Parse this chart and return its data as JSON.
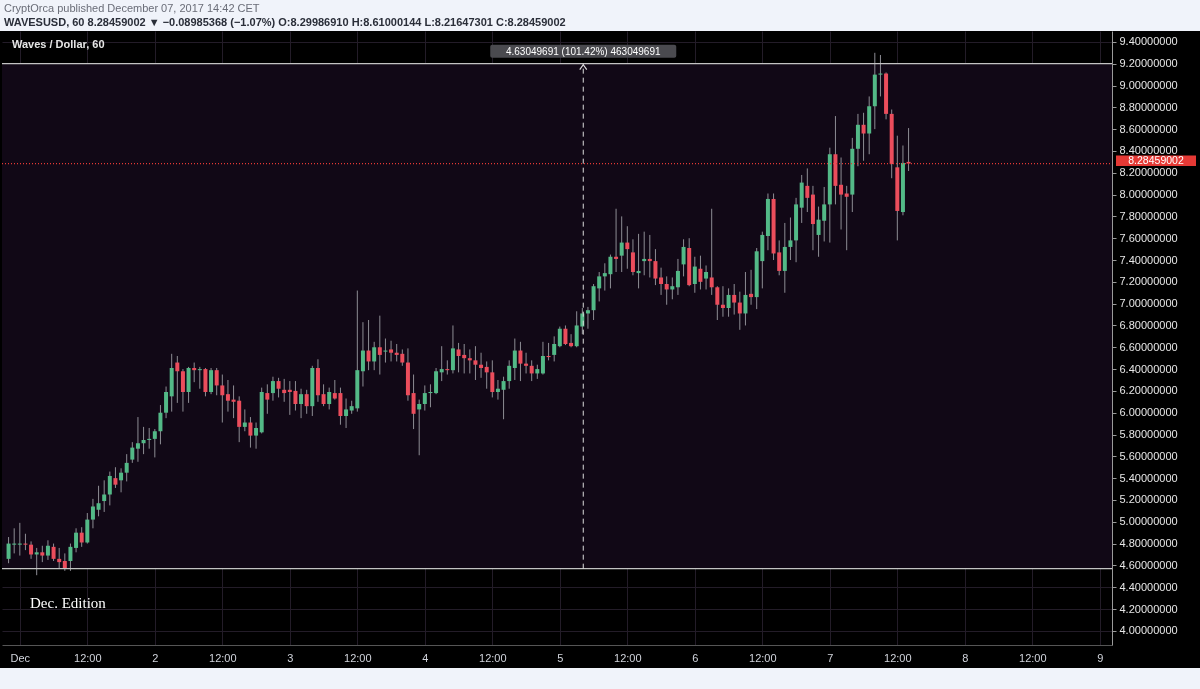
{
  "chart_data": {
    "type": "candlestick",
    "title": "Waves / Dollar, 60",
    "annotations": [
      "CryptOrca published December 07, 2017 14:42 CET",
      "WAVESUSD, 60 8.28459002 ▼ −0.08985368 (−1.07%) O:8.29986910 H:8.61000144 L:8.21647301 C:8.28459002",
      "Dec. Edition"
    ],
    "x": [
      "2017-11-30T22:00",
      "2017-11-30T23:00",
      "2017-12-01T00:00",
      "2017-12-01T01:00",
      "2017-12-01T02:00",
      "2017-12-01T03:00",
      "2017-12-01T04:00",
      "2017-12-01T05:00",
      "2017-12-01T06:00",
      "2017-12-01T07:00",
      "2017-12-01T08:00",
      "2017-12-01T09:00",
      "2017-12-01T10:00",
      "2017-12-01T11:00",
      "2017-12-01T12:00",
      "2017-12-01T13:00",
      "2017-12-01T14:00",
      "2017-12-01T15:00",
      "2017-12-01T16:00",
      "2017-12-01T17:00",
      "2017-12-01T18:00",
      "2017-12-01T19:00",
      "2017-12-01T20:00",
      "2017-12-01T21:00",
      "2017-12-01T22:00",
      "2017-12-01T23:00",
      "2017-12-02T00:00",
      "2017-12-02T01:00",
      "2017-12-02T02:00",
      "2017-12-02T03:00",
      "2017-12-02T04:00",
      "2017-12-02T05:00",
      "2017-12-02T06:00",
      "2017-12-02T07:00",
      "2017-12-02T08:00",
      "2017-12-02T09:00",
      "2017-12-02T10:00",
      "2017-12-02T11:00",
      "2017-12-02T12:00",
      "2017-12-02T13:00",
      "2017-12-02T14:00",
      "2017-12-02T15:00",
      "2017-12-02T16:00",
      "2017-12-02T17:00",
      "2017-12-02T18:00",
      "2017-12-02T19:00",
      "2017-12-02T20:00",
      "2017-12-02T21:00",
      "2017-12-02T22:00",
      "2017-12-02T23:00",
      "2017-12-03T00:00",
      "2017-12-03T01:00",
      "2017-12-03T02:00",
      "2017-12-03T03:00",
      "2017-12-03T04:00",
      "2017-12-03T05:00",
      "2017-12-03T06:00",
      "2017-12-03T07:00",
      "2017-12-03T08:00",
      "2017-12-03T09:00",
      "2017-12-03T10:00",
      "2017-12-03T11:00",
      "2017-12-03T12:00",
      "2017-12-03T13:00",
      "2017-12-03T14:00",
      "2017-12-03T15:00",
      "2017-12-03T16:00",
      "2017-12-03T17:00",
      "2017-12-03T18:00",
      "2017-12-03T19:00",
      "2017-12-03T20:00",
      "2017-12-03T21:00",
      "2017-12-03T22:00",
      "2017-12-03T23:00",
      "2017-12-04T00:00",
      "2017-12-04T01:00",
      "2017-12-04T02:00",
      "2017-12-04T03:00",
      "2017-12-04T04:00",
      "2017-12-04T05:00",
      "2017-12-04T06:00",
      "2017-12-04T07:00",
      "2017-12-04T08:00",
      "2017-12-04T09:00",
      "2017-12-04T10:00",
      "2017-12-04T11:00",
      "2017-12-04T12:00",
      "2017-12-04T13:00",
      "2017-12-04T14:00",
      "2017-12-04T15:00",
      "2017-12-04T16:00",
      "2017-12-04T17:00",
      "2017-12-04T18:00",
      "2017-12-04T19:00",
      "2017-12-04T20:00",
      "2017-12-04T21:00",
      "2017-12-04T22:00",
      "2017-12-04T23:00",
      "2017-12-05T00:00",
      "2017-12-05T01:00",
      "2017-12-05T02:00",
      "2017-12-05T03:00",
      "2017-12-05T04:00",
      "2017-12-05T05:00",
      "2017-12-05T06:00",
      "2017-12-05T07:00",
      "2017-12-05T08:00",
      "2017-12-05T09:00",
      "2017-12-05T10:00",
      "2017-12-05T11:00",
      "2017-12-05T12:00",
      "2017-12-05T13:00",
      "2017-12-05T14:00",
      "2017-12-05T15:00",
      "2017-12-05T16:00",
      "2017-12-05T17:00",
      "2017-12-05T18:00",
      "2017-12-05T19:00",
      "2017-12-05T20:00",
      "2017-12-05T21:00",
      "2017-12-05T22:00",
      "2017-12-05T23:00",
      "2017-12-06T00:00",
      "2017-12-06T01:00",
      "2017-12-06T02:00",
      "2017-12-06T03:00",
      "2017-12-06T04:00",
      "2017-12-06T05:00",
      "2017-12-06T06:00",
      "2017-12-06T07:00",
      "2017-12-06T08:00",
      "2017-12-06T09:00",
      "2017-12-06T10:00",
      "2017-12-06T11:00",
      "2017-12-06T12:00",
      "2017-12-06T13:00",
      "2017-12-06T14:00",
      "2017-12-06T15:00",
      "2017-12-06T16:00",
      "2017-12-06T17:00",
      "2017-12-06T18:00",
      "2017-12-06T19:00",
      "2017-12-06T20:00",
      "2017-12-06T21:00",
      "2017-12-06T22:00",
      "2017-12-06T23:00",
      "2017-12-07T00:00",
      "2017-12-07T01:00",
      "2017-12-07T02:00",
      "2017-12-07T03:00",
      "2017-12-07T04:00",
      "2017-12-07T05:00",
      "2017-12-07T06:00",
      "2017-12-07T07:00",
      "2017-12-07T08:00",
      "2017-12-07T09:00",
      "2017-12-07T10:00",
      "2017-12-07T11:00",
      "2017-12-07T12:00",
      "2017-12-07T13:00",
      "2017-12-07T14:00"
    ],
    "ohlc": [
      [
        4.66,
        4.86,
        4.62,
        4.8
      ],
      [
        4.79,
        4.94,
        4.71,
        4.8
      ],
      [
        4.79,
        4.99,
        4.69,
        4.8
      ],
      [
        4.8,
        4.89,
        4.74,
        4.79
      ],
      [
        4.79,
        4.82,
        4.66,
        4.7
      ],
      [
        4.7,
        4.76,
        4.51,
        4.72
      ],
      [
        4.72,
        4.78,
        4.63,
        4.69
      ],
      [
        4.69,
        4.83,
        4.65,
        4.78
      ],
      [
        4.77,
        4.8,
        4.64,
        4.66
      ],
      [
        4.66,
        4.76,
        4.57,
        4.63
      ],
      [
        4.64,
        4.71,
        4.55,
        4.57
      ],
      [
        4.64,
        4.8,
        4.55,
        4.77
      ],
      [
        4.76,
        4.94,
        4.72,
        4.9
      ],
      [
        4.9,
        4.95,
        4.77,
        4.81
      ],
      [
        4.81,
        5.08,
        4.8,
        5.02
      ],
      [
        5.02,
        5.21,
        4.94,
        5.14
      ],
      [
        5.11,
        5.33,
        5.05,
        5.17
      ],
      [
        5.19,
        5.38,
        5.09,
        5.25
      ],
      [
        5.25,
        5.46,
        5.15,
        5.42
      ],
      [
        5.4,
        5.5,
        5.31,
        5.34
      ],
      [
        5.38,
        5.49,
        5.27,
        5.45
      ],
      [
        5.45,
        5.62,
        5.37,
        5.54
      ],
      [
        5.57,
        5.73,
        5.54,
        5.68
      ],
      [
        5.67,
        5.96,
        5.55,
        5.72
      ],
      [
        5.72,
        5.87,
        5.62,
        5.75
      ],
      [
        5.75,
        5.86,
        5.67,
        5.76
      ],
      [
        5.76,
        5.85,
        5.59,
        5.83
      ],
      [
        5.83,
        6.07,
        5.71,
        6.0
      ],
      [
        6.0,
        6.24,
        5.95,
        6.19
      ],
      [
        6.15,
        6.54,
        6.01,
        6.41
      ],
      [
        6.46,
        6.52,
        6.09,
        6.38
      ],
      [
        6.38,
        6.4,
        6.01,
        6.19
      ],
      [
        6.19,
        6.42,
        6.09,
        6.41
      ],
      [
        6.41,
        6.46,
        6.28,
        6.39
      ],
      [
        6.39,
        6.42,
        6.22,
        6.4
      ],
      [
        6.4,
        6.41,
        6.15,
        6.19
      ],
      [
        6.19,
        6.41,
        6.17,
        6.39
      ],
      [
        6.39,
        6.41,
        6.16,
        6.25
      ],
      [
        6.25,
        6.35,
        5.91,
        6.16
      ],
      [
        6.17,
        6.3,
        6.01,
        6.11
      ],
      [
        6.12,
        6.25,
        5.95,
        6.1
      ],
      [
        6.11,
        6.15,
        5.73,
        5.87
      ],
      [
        5.87,
        6.03,
        5.83,
        5.91
      ],
      [
        5.91,
        5.96,
        5.68,
        5.79
      ],
      [
        5.79,
        5.91,
        5.67,
        5.86
      ],
      [
        5.82,
        6.23,
        5.81,
        6.19
      ],
      [
        6.18,
        6.26,
        5.99,
        6.12
      ],
      [
        6.18,
        6.33,
        6.11,
        6.29
      ],
      [
        6.29,
        6.32,
        6.14,
        6.22
      ],
      [
        6.21,
        6.31,
        6.1,
        6.18
      ],
      [
        6.21,
        6.29,
        5.98,
        6.19
      ],
      [
        6.2,
        6.29,
        6.02,
        6.08
      ],
      [
        6.08,
        6.22,
        5.95,
        6.17
      ],
      [
        6.17,
        6.21,
        5.99,
        6.06
      ],
      [
        6.06,
        6.43,
        5.97,
        6.41
      ],
      [
        6.41,
        6.49,
        6.1,
        6.16
      ],
      [
        6.17,
        6.26,
        6.06,
        6.08
      ],
      [
        6.08,
        6.23,
        6.03,
        6.19
      ],
      [
        6.18,
        6.3,
        6.12,
        6.13
      ],
      [
        6.18,
        6.23,
        5.89,
        5.97
      ],
      [
        5.97,
        6.13,
        5.86,
        6.03
      ],
      [
        6.02,
        6.11,
        5.99,
        6.06
      ],
      [
        6.04,
        7.12,
        6.01,
        6.39
      ],
      [
        6.38,
        6.83,
        6.24,
        6.57
      ],
      [
        6.57,
        6.85,
        6.39,
        6.47
      ],
      [
        6.47,
        6.65,
        6.39,
        6.6
      ],
      [
        6.6,
        6.89,
        6.35,
        6.53
      ],
      [
        6.56,
        6.68,
        6.46,
        6.57
      ],
      [
        6.58,
        6.66,
        6.47,
        6.55
      ],
      [
        6.55,
        6.63,
        6.47,
        6.53
      ],
      [
        6.54,
        6.58,
        6.43,
        6.46
      ],
      [
        6.46,
        6.59,
        6.11,
        6.16
      ],
      [
        6.18,
        6.35,
        5.85,
        5.99
      ],
      [
        6.03,
        6.12,
        5.61,
        6.08
      ],
      [
        6.08,
        6.25,
        6.02,
        6.18
      ],
      [
        6.18,
        6.26,
        6.05,
        6.19
      ],
      [
        6.18,
        6.41,
        6.17,
        6.38
      ],
      [
        6.37,
        6.61,
        6.29,
        6.4
      ],
      [
        6.4,
        6.48,
        6.35,
        6.39
      ],
      [
        6.39,
        6.8,
        6.36,
        6.59
      ],
      [
        6.58,
        6.64,
        6.37,
        6.52
      ],
      [
        6.53,
        6.63,
        6.36,
        6.5
      ],
      [
        6.5,
        6.58,
        6.36,
        6.48
      ],
      [
        6.48,
        6.61,
        6.3,
        6.44
      ],
      [
        6.44,
        6.55,
        6.32,
        6.41
      ],
      [
        6.42,
        6.47,
        6.22,
        6.37
      ],
      [
        6.37,
        6.48,
        6.14,
        6.19
      ],
      [
        6.19,
        6.3,
        6.12,
        6.22
      ],
      [
        6.21,
        6.33,
        5.94,
        6.29
      ],
      [
        6.29,
        6.48,
        6.22,
        6.43
      ],
      [
        6.41,
        6.68,
        6.3,
        6.57
      ],
      [
        6.57,
        6.65,
        6.29,
        6.45
      ],
      [
        6.45,
        6.55,
        6.36,
        6.43
      ],
      [
        6.43,
        6.48,
        6.29,
        6.36
      ],
      [
        6.36,
        6.44,
        6.31,
        6.4
      ],
      [
        6.36,
        6.65,
        6.35,
        6.52
      ],
      [
        6.52,
        6.64,
        6.48,
        6.51
      ],
      [
        6.53,
        6.7,
        6.47,
        6.63
      ],
      [
        6.61,
        6.79,
        6.6,
        6.77
      ],
      [
        6.77,
        6.8,
        6.62,
        6.63
      ],
      [
        6.64,
        6.72,
        6.6,
        6.61
      ],
      [
        6.61,
        6.93,
        6.6,
        6.8
      ],
      [
        6.79,
        6.96,
        6.72,
        6.91
      ],
      [
        6.91,
        6.97,
        6.77,
        6.94
      ],
      [
        6.94,
        7.18,
        6.85,
        7.16
      ],
      [
        7.14,
        7.29,
        7.02,
        7.25
      ],
      [
        7.25,
        7.37,
        7.12,
        7.28
      ],
      [
        7.27,
        7.45,
        7.14,
        7.43
      ],
      [
        7.43,
        7.87,
        7.29,
        7.41
      ],
      [
        7.44,
        7.8,
        7.29,
        7.56
      ],
      [
        7.56,
        7.71,
        7.32,
        7.5
      ],
      [
        7.47,
        7.59,
        7.26,
        7.29
      ],
      [
        7.28,
        7.64,
        7.14,
        7.3
      ],
      [
        7.39,
        7.66,
        7.26,
        7.41
      ],
      [
        7.41,
        7.63,
        7.24,
        7.39
      ],
      [
        7.39,
        7.5,
        7.17,
        7.23
      ],
      [
        7.24,
        7.33,
        7.08,
        7.18
      ],
      [
        7.18,
        7.25,
        6.99,
        7.13
      ],
      [
        7.13,
        7.24,
        7.04,
        7.16
      ],
      [
        7.15,
        7.41,
        7.08,
        7.3
      ],
      [
        7.36,
        7.59,
        7.25,
        7.52
      ],
      [
        7.51,
        7.6,
        7.16,
        7.17
      ],
      [
        7.18,
        7.43,
        7.1,
        7.34
      ],
      [
        7.32,
        7.44,
        7.13,
        7.2
      ],
      [
        7.23,
        7.35,
        7.13,
        7.29
      ],
      [
        7.24,
        7.87,
        7.08,
        7.15
      ],
      [
        7.15,
        7.16,
        6.85,
        6.99
      ],
      [
        6.99,
        7.16,
        6.88,
        6.96
      ],
      [
        6.96,
        7.14,
        6.88,
        7.08
      ],
      [
        7.08,
        7.18,
        6.9,
        7.01
      ],
      [
        7.01,
        7.11,
        6.76,
        6.91
      ],
      [
        6.91,
        7.29,
        6.8,
        7.08
      ],
      [
        7.09,
        7.31,
        6.99,
        7.06
      ],
      [
        7.06,
        7.51,
        6.95,
        7.48
      ],
      [
        7.39,
        7.66,
        7.14,
        7.63
      ],
      [
        7.62,
        8.01,
        7.49,
        7.96
      ],
      [
        7.96,
        8.01,
        7.4,
        7.46
      ],
      [
        7.47,
        7.58,
        7.26,
        7.3
      ],
      [
        7.3,
        7.74,
        7.1,
        7.52
      ],
      [
        7.52,
        7.79,
        7.4,
        7.58
      ],
      [
        7.58,
        7.97,
        7.38,
        7.91
      ],
      [
        7.88,
        8.18,
        7.74,
        8.11
      ],
      [
        8.08,
        8.24,
        7.84,
        7.97
      ],
      [
        8.0,
        8.08,
        7.49,
        7.73
      ],
      [
        7.63,
        7.89,
        7.43,
        7.77
      ],
      [
        7.76,
        8.07,
        7.57,
        7.91
      ],
      [
        7.91,
        8.43,
        7.56,
        8.37
      ],
      [
        8.37,
        8.72,
        7.91,
        8.08
      ],
      [
        8.09,
        8.34,
        7.68,
        8.0
      ],
      [
        8.01,
        8.08,
        7.49,
        7.98
      ],
      [
        8.0,
        8.52,
        7.84,
        8.42
      ],
      [
        8.42,
        8.74,
        8.26,
        8.64
      ],
      [
        8.64,
        8.75,
        8.31,
        8.56
      ],
      [
        8.56,
        8.9,
        8.37,
        8.81
      ],
      [
        8.81,
        9.3,
        8.6,
        9.1
      ],
      [
        9.1,
        9.28,
        8.9,
        9.11
      ],
      [
        9.11,
        9.12,
        8.69,
        8.74
      ],
      [
        8.74,
        8.78,
        8.15,
        8.28
      ],
      [
        8.25,
        8.54,
        7.58,
        7.85
      ],
      [
        7.84,
        8.45,
        7.81,
        8.29
      ],
      [
        8.2998691,
        8.61000144,
        8.21647301,
        8.28459002
      ]
    ],
    "colors": [
      "#53b987",
      "#53b987",
      "#53b987",
      "#eb4d5c",
      "#eb4d5c",
      "#53b987",
      "#eb4d5c",
      "#53b987",
      "#eb4d5c",
      "#eb4d5c",
      "#eb4d5c",
      "#53b987",
      "#53b987",
      "#eb4d5c",
      "#53b987",
      "#53b987",
      "#53b987",
      "#53b987",
      "#53b987",
      "#eb4d5c",
      "#53b987",
      "#53b987",
      "#53b987",
      "#53b987",
      "#53b987",
      "#53b987",
      "#53b987",
      "#53b987",
      "#53b987",
      "#53b987",
      "#eb4d5c",
      "#eb4d5c",
      "#53b987",
      "#eb4d5c",
      "#53b987",
      "#eb4d5c",
      "#53b987",
      "#eb4d5c",
      "#eb4d5c",
      "#eb4d5c",
      "#eb4d5c",
      "#eb4d5c",
      "#53b987",
      "#eb4d5c",
      "#53b987",
      "#53b987",
      "#eb4d5c",
      "#53b987",
      "#eb4d5c",
      "#eb4d5c",
      "#eb4d5c",
      "#eb4d5c",
      "#53b987",
      "#eb4d5c",
      "#53b987",
      "#eb4d5c",
      "#eb4d5c",
      "#53b987",
      "#eb4d5c",
      "#eb4d5c",
      "#53b987",
      "#53b987",
      "#53b987",
      "#53b987",
      "#eb4d5c",
      "#53b987",
      "#eb4d5c",
      "#53b987",
      "#eb4d5c",
      "#eb4d5c",
      "#eb4d5c",
      "#eb4d5c",
      "#eb4d5c",
      "#53b987",
      "#53b987",
      "#53b987",
      "#53b987",
      "#53b987",
      "#eb4d5c",
      "#53b987",
      "#eb4d5c",
      "#eb4d5c",
      "#eb4d5c",
      "#eb4d5c",
      "#eb4d5c",
      "#eb4d5c",
      "#eb4d5c",
      "#53b987",
      "#53b987",
      "#53b987",
      "#53b987",
      "#eb4d5c",
      "#eb4d5c",
      "#eb4d5c",
      "#53b987",
      "#53b987",
      "#eb4d5c",
      "#53b987",
      "#53b987",
      "#eb4d5c",
      "#eb4d5c",
      "#53b987",
      "#53b987",
      "#53b987",
      "#53b987",
      "#53b987",
      "#53b987",
      "#53b987",
      "#eb4d5c",
      "#53b987",
      "#eb4d5c",
      "#eb4d5c",
      "#53b987",
      "#53b987",
      "#eb4d5c",
      "#eb4d5c",
      "#eb4d5c",
      "#eb4d5c",
      "#53b987",
      "#53b987",
      "#53b987",
      "#eb4d5c",
      "#53b987",
      "#eb4d5c",
      "#53b987",
      "#eb4d5c",
      "#eb4d5c",
      "#eb4d5c",
      "#53b987",
      "#eb4d5c",
      "#eb4d5c",
      "#53b987",
      "#eb4d5c",
      "#53b987",
      "#53b987",
      "#53b987",
      "#eb4d5c",
      "#eb4d5c",
      "#53b987",
      "#53b987",
      "#53b987",
      "#53b987",
      "#eb4d5c",
      "#eb4d5c",
      "#53b987",
      "#53b987",
      "#53b987",
      "#eb4d5c",
      "#eb4d5c",
      "#eb4d5c",
      "#53b987",
      "#53b987",
      "#eb4d5c",
      "#53b987",
      "#53b987",
      "#53b987",
      "#eb4d5c",
      "#eb4d5c",
      "#eb4d5c",
      "#53b987",
      "#eb4d5c"
    ],
    "xlim": [
      "2017-11-30T20:50",
      "2017-12-09T02:10"
    ],
    "xticks": [
      {
        "value": "2017-12-01T00:00",
        "label": "Dec"
      },
      {
        "value": "2017-12-01T12:00",
        "label": "12:00"
      },
      {
        "value": "2017-12-02T00:00",
        "label": "2"
      },
      {
        "value": "2017-12-02T12:00",
        "label": "12:00"
      },
      {
        "value": "2017-12-03T00:00",
        "label": "3"
      },
      {
        "value": "2017-12-03T12:00",
        "label": "12:00"
      },
      {
        "value": "2017-12-04T00:00",
        "label": "4"
      },
      {
        "value": "2017-12-04T12:00",
        "label": "12:00"
      },
      {
        "value": "2017-12-05T00:00",
        "label": "5"
      },
      {
        "value": "2017-12-05T12:00",
        "label": "12:00"
      },
      {
        "value": "2017-12-06T00:00",
        "label": "6"
      },
      {
        "value": "2017-12-06T12:00",
        "label": "12:00"
      },
      {
        "value": "2017-12-07T00:00",
        "label": "7"
      },
      {
        "value": "2017-12-07T12:00",
        "label": "12:00"
      },
      {
        "value": "2017-12-08T00:00",
        "label": "8"
      },
      {
        "value": "2017-12-08T12:00",
        "label": "12:00"
      },
      {
        "value": "2017-12-09T00:00",
        "label": "9"
      }
    ],
    "ylim": [
      3.87,
      9.5
    ],
    "yticks": [
      {
        "value": 4,
        "label": "4.00000000"
      },
      {
        "value": 4.2,
        "label": "4.20000000"
      },
      {
        "value": 4.4,
        "label": "4.40000000"
      },
      {
        "value": 4.6,
        "label": "4.60000000"
      },
      {
        "value": 4.8,
        "label": "4.80000000"
      },
      {
        "value": 5,
        "label": "5.00000000"
      },
      {
        "value": 5.2,
        "label": "5.20000000"
      },
      {
        "value": 5.4,
        "label": "5.40000000"
      },
      {
        "value": 5.6,
        "label": "5.60000000"
      },
      {
        "value": 5.8,
        "label": "5.80000000"
      },
      {
        "value": 6,
        "label": "6.00000000"
      },
      {
        "value": 6.2,
        "label": "6.20000000"
      },
      {
        "value": 6.4,
        "label": "6.40000000"
      },
      {
        "value": 6.6,
        "label": "6.60000000"
      },
      {
        "value": 6.8,
        "label": "6.80000000"
      },
      {
        "value": 7,
        "label": "7.00000000"
      },
      {
        "value": 7.2,
        "label": "7.20000000"
      },
      {
        "value": 7.4,
        "label": "7.40000000"
      },
      {
        "value": 7.6,
        "label": "7.60000000"
      },
      {
        "value": 7.8,
        "label": "7.80000000"
      },
      {
        "value": 8,
        "label": "8.00000000"
      },
      {
        "value": 8.2,
        "label": "8.20000000"
      },
      {
        "value": 8.4,
        "label": "8.40000000"
      },
      {
        "value": 8.6,
        "label": "8.60000000"
      },
      {
        "value": 8.8,
        "label": "8.80000000"
      },
      {
        "value": 9,
        "label": "9.00000000"
      },
      {
        "value": 9.2,
        "label": "9.20000000"
      },
      {
        "value": 9.4,
        "label": "9.40000000"
      }
    ],
    "grid": true,
    "ref_lines": [
      {
        "axis": "y",
        "value": 8.28459002,
        "label": "8.28459002",
        "color": "#e53935",
        "line_style": "dotted"
      },
      {
        "axis": "y",
        "value": 9.2,
        "color": "#c3c3c3",
        "line_style": "solid"
      },
      {
        "axis": "y",
        "value": 4.57,
        "color": "#c3c3c3",
        "line_style": "solid"
      },
      {
        "axis": "x",
        "value": "2017-12-05T04:10",
        "color": "#dddddd",
        "line_style": "dashed"
      }
    ],
    "bands": [
      {
        "axis": "y",
        "from": 4.57,
        "to": 9.2,
        "label": "4.63049691 (101.42%) 463049691",
        "color": "#110816"
      }
    ]
  }
}
